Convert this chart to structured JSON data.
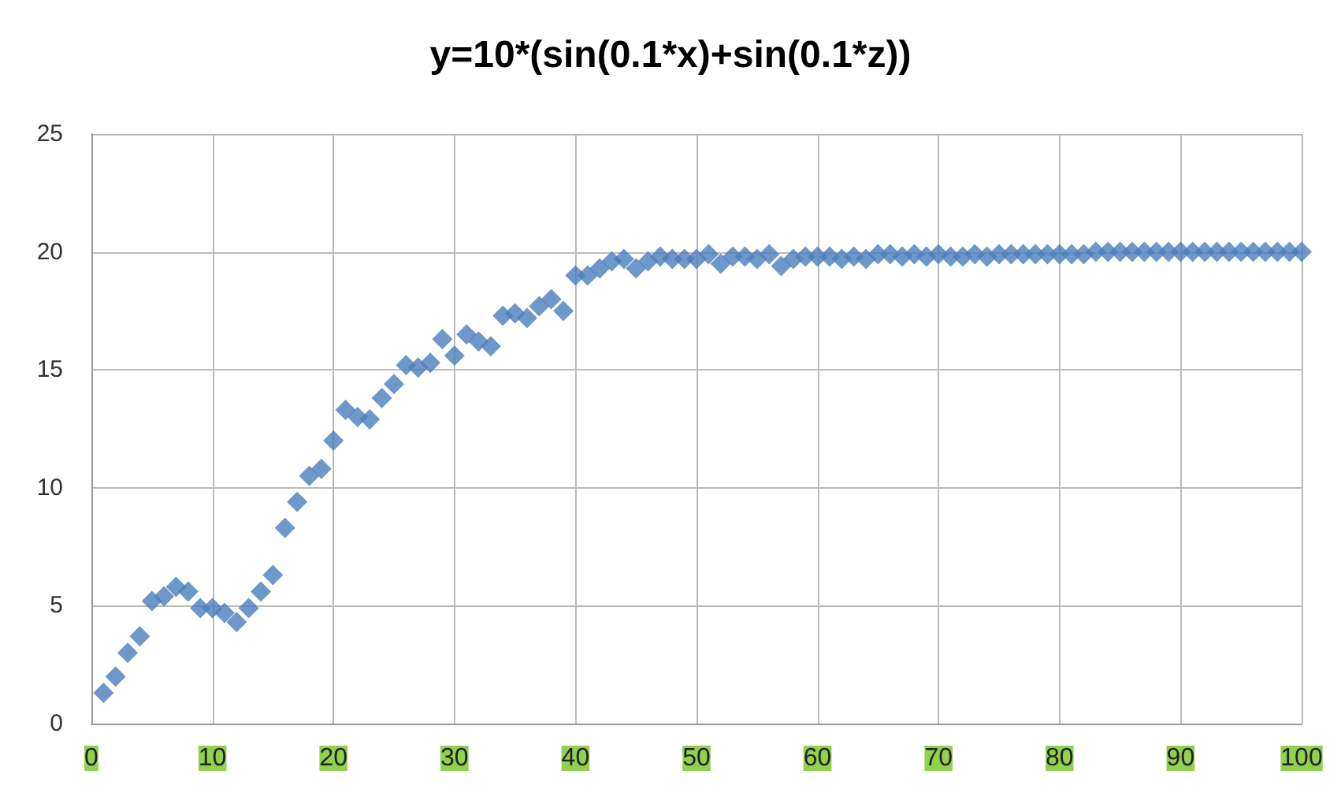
{
  "chart_data": {
    "type": "scatter",
    "title": "y=10*(sin(0.1*x)+sin(0.1*z))",
    "x": [
      1,
      2,
      3,
      4,
      5,
      6,
      7,
      8,
      9,
      10,
      11,
      12,
      13,
      14,
      15,
      16,
      17,
      18,
      19,
      20,
      21,
      22,
      23,
      24,
      25,
      26,
      27,
      28,
      29,
      30,
      31,
      32,
      33,
      34,
      35,
      36,
      37,
      38,
      39,
      40,
      41,
      42,
      43,
      44,
      45,
      46,
      47,
      48,
      49,
      50,
      51,
      52,
      53,
      54,
      55,
      56,
      57,
      58,
      59,
      60,
      61,
      62,
      63,
      64,
      65,
      66,
      67,
      68,
      69,
      70,
      71,
      72,
      73,
      74,
      75,
      76,
      77,
      78,
      79,
      80,
      81,
      82,
      83,
      84,
      85,
      86,
      87,
      88,
      89,
      90,
      91,
      92,
      93,
      94,
      95,
      96,
      97,
      98,
      99,
      100
    ],
    "series": [
      {
        "color": "#4a7ebb",
        "values": [
          1.3,
          2.0,
          3.0,
          3.7,
          5.2,
          5.4,
          5.8,
          5.6,
          4.9,
          4.9,
          4.7,
          4.3,
          4.9,
          5.6,
          6.3,
          8.3,
          9.4,
          10.5,
          10.8,
          12.0,
          13.3,
          13.0,
          12.9,
          13.8,
          14.4,
          15.2,
          15.1,
          15.3,
          16.3,
          15.6,
          16.5,
          16.2,
          16.0,
          17.3,
          17.4,
          17.2,
          17.7,
          18.0,
          17.5,
          19.0,
          19.0,
          19.3,
          19.6,
          19.7,
          19.3,
          19.6,
          19.8,
          19.7,
          19.7,
          19.7,
          19.9,
          19.5,
          19.8,
          19.8,
          19.7,
          19.9,
          19.4,
          19.7,
          19.8,
          19.8,
          19.8,
          19.7,
          19.8,
          19.7,
          19.9,
          19.9,
          19.8,
          19.9,
          19.8,
          19.9,
          19.8,
          19.8,
          19.9,
          19.8,
          19.9,
          19.9,
          19.9,
          19.9,
          19.9,
          19.9,
          19.9,
          19.9,
          20.0,
          20.0,
          20.0,
          20.0,
          20.0,
          20.0,
          20.0,
          20.0,
          20.0,
          20.0,
          20.0,
          20.0,
          20.0,
          20.0,
          20.0,
          20.0,
          20.0,
          20.0
        ]
      }
    ],
    "xlim": [
      0,
      100
    ],
    "xticks": [
      0,
      10,
      20,
      30,
      40,
      50,
      60,
      70,
      80,
      90,
      100
    ],
    "ylim": [
      0,
      25
    ],
    "yticks": [
      0,
      5,
      10,
      15,
      20,
      25
    ],
    "grid": true,
    "marker": "diamond"
  }
}
